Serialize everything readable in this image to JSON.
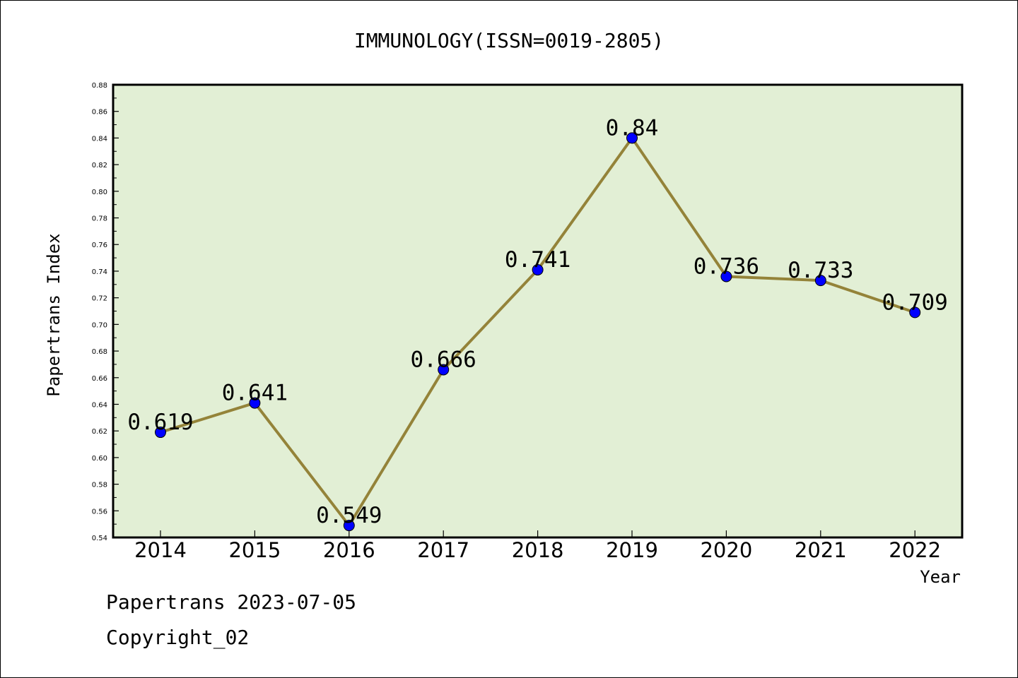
{
  "chart_data": {
    "type": "line",
    "title": "IMMUNOLOGY(ISSN=0019-2805)",
    "xlabel": "Year",
    "ylabel": "Papertrans Index",
    "categories": [
      "2014",
      "2015",
      "2016",
      "2017",
      "2018",
      "2019",
      "2020",
      "2021",
      "2022"
    ],
    "series": [
      {
        "values": [
          0.619,
          0.641,
          0.549,
          0.666,
          0.741,
          0.84,
          0.736,
          0.733,
          0.709
        ],
        "labels": [
          "0.619",
          "0.641",
          "0.549",
          "0.666",
          "0.741",
          "0.84",
          "0.736",
          "0.733",
          "0.709"
        ]
      }
    ],
    "ylim": [
      0.54,
      0.88
    ],
    "yticks": [
      "0.54",
      "0.56",
      "0.58",
      "0.60",
      "0.62",
      "0.64",
      "0.66",
      "0.68",
      "0.70",
      "0.72",
      "0.74",
      "0.76",
      "0.78",
      "0.80",
      "0.82",
      "0.84",
      "0.86",
      "0.88"
    ],
    "grid": false,
    "colors": {
      "plot_background": "#e2efd5",
      "line": "#948339",
      "marker": "#0000ff"
    }
  },
  "footer": {
    "line1": "Papertrans 2023-07-05",
    "line2": "Copyright_02"
  }
}
